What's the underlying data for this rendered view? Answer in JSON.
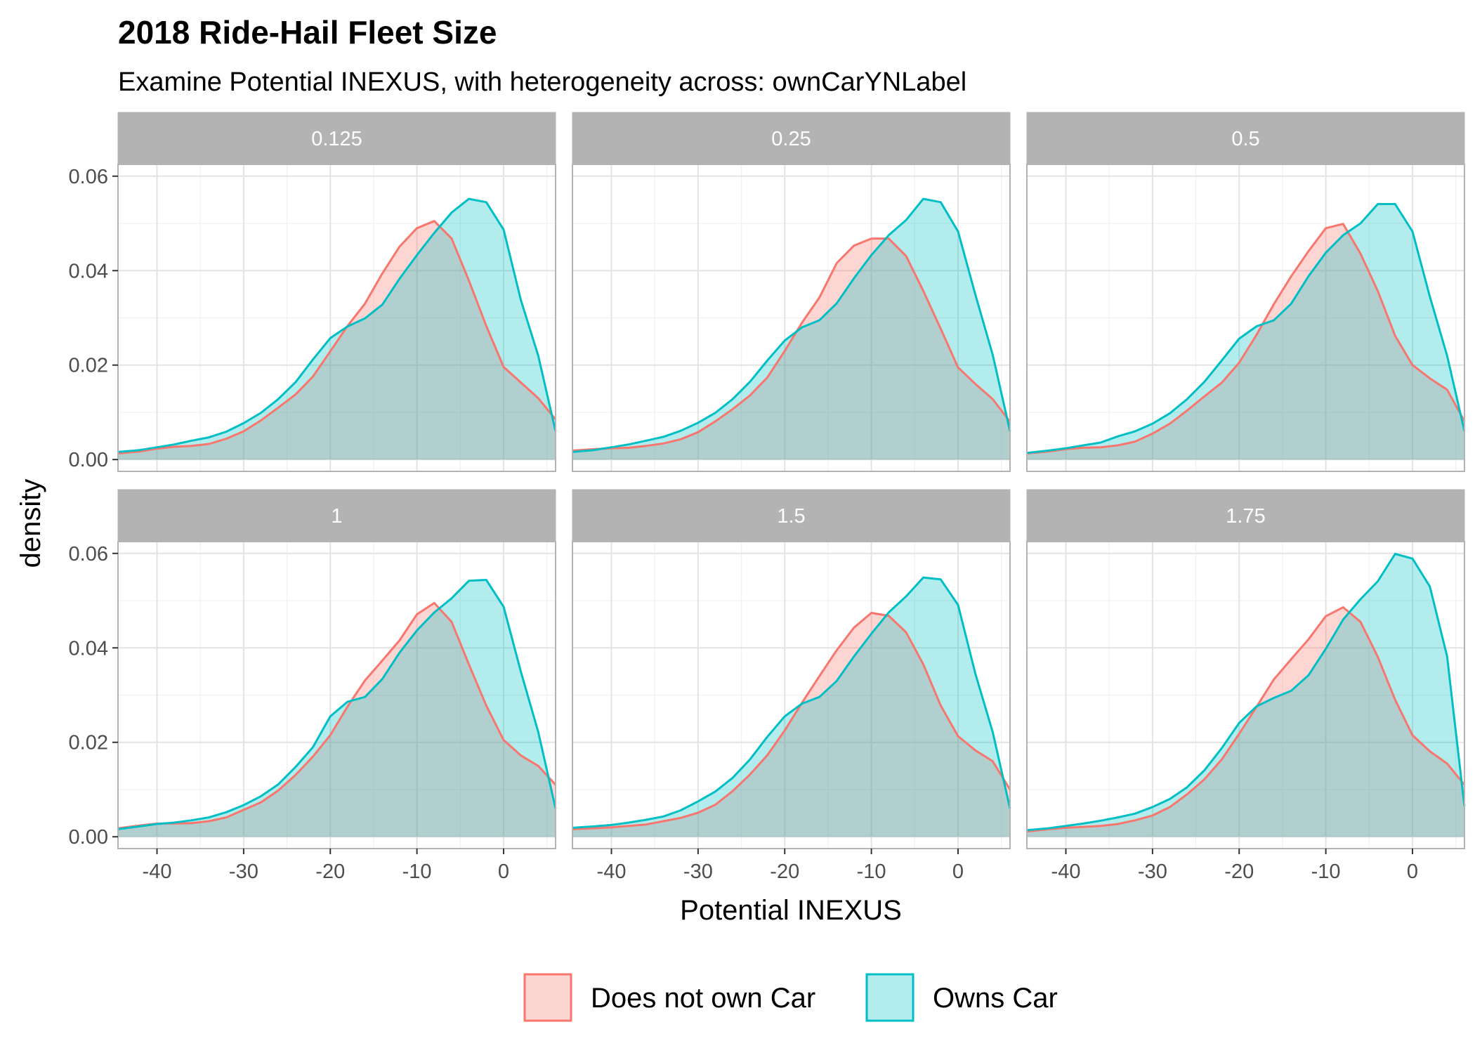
{
  "chart_data": {
    "type": "area",
    "title": "2018 Ride-Hail Fleet Size",
    "subtitle": "Examine Potential INEXUS, with heterogeneity across: ownCarYNLabel",
    "xlabel": "Potential INEXUS",
    "ylabel": "density",
    "xlim": [
      -44.5,
      6
    ],
    "ylim": [
      -0.0025,
      0.0625
    ],
    "x_ticks": [
      -40,
      -30,
      -20,
      -10,
      0
    ],
    "x_tick_labels": [
      "-40",
      "-30",
      "-20",
      "-10",
      "0"
    ],
    "y_ticks": [
      0,
      0.02,
      0.04,
      0.06
    ],
    "y_tick_labels": [
      "0.00",
      "0.02",
      "0.04",
      "0.06"
    ],
    "grid": true,
    "legend_position": "bottom",
    "legend": [
      {
        "name": "Does not own Car",
        "line_color": "#F8766D",
        "fill_color": "#FCD5D2"
      },
      {
        "name": "Owns Car",
        "line_color": "#00BFC4",
        "fill_color": "#B3ECED"
      }
    ],
    "facets": [
      {
        "label": "0.125",
        "series": [
          {
            "name": "Does not own Car",
            "x": [
              -44.5,
              -42,
              -40,
              -38,
              -36,
              -34,
              -32,
              -30,
              -28,
              -26,
              -24,
              -22,
              -20,
              -18,
              -16,
              -14,
              -12,
              -10,
              -8,
              -6,
              -4,
              -2,
              0,
              2,
              4,
              6
            ],
            "y": [
              0.0013,
              0.0017,
              0.0023,
              0.0027,
              0.0029,
              0.0033,
              0.0044,
              0.006,
              0.0083,
              0.011,
              0.0138,
              0.0176,
              0.0229,
              0.0283,
              0.033,
              0.0394,
              0.0451,
              0.049,
              0.0505,
              0.0468,
              0.0379,
              0.0283,
              0.0196,
              0.0163,
              0.013,
              0.0085
            ]
          },
          {
            "name": "Owns Car",
            "x": [
              -44.5,
              -42,
              -40,
              -38,
              -36,
              -34,
              -32,
              -30,
              -28,
              -26,
              -24,
              -22,
              -20,
              -18,
              -16,
              -14,
              -12,
              -10,
              -8,
              -6,
              -4,
              -2,
              0,
              2,
              4,
              6
            ],
            "y": [
              0.0016,
              0.002,
              0.0026,
              0.0032,
              0.004,
              0.0047,
              0.0059,
              0.0077,
              0.0099,
              0.0128,
              0.0164,
              0.0212,
              0.0257,
              0.0282,
              0.0299,
              0.0328,
              0.0383,
              0.0433,
              0.048,
              0.0523,
              0.0552,
              0.0545,
              0.0487,
              0.0337,
              0.022,
              0.006
            ]
          }
        ]
      },
      {
        "label": "0.25",
        "series": [
          {
            "name": "Does not own Car",
            "x": [
              -44.5,
              -42,
              -40,
              -38,
              -36,
              -34,
              -32,
              -30,
              -28,
              -26,
              -24,
              -22,
              -20,
              -18,
              -16,
              -14,
              -12,
              -10,
              -8,
              -6,
              -4,
              -2,
              0,
              2,
              4,
              6
            ],
            "y": [
              0.0019,
              0.0022,
              0.0024,
              0.0025,
              0.0029,
              0.0034,
              0.0043,
              0.0058,
              0.0081,
              0.0107,
              0.0136,
              0.0174,
              0.023,
              0.029,
              0.0343,
              0.0416,
              0.0453,
              0.0468,
              0.0468,
              0.0431,
              0.0357,
              0.0277,
              0.0195,
              0.016,
              0.0128,
              0.008
            ]
          },
          {
            "name": "Owns Car",
            "x": [
              -44.5,
              -42,
              -40,
              -38,
              -36,
              -34,
              -32,
              -30,
              -28,
              -26,
              -24,
              -22,
              -20,
              -18,
              -16,
              -14,
              -12,
              -10,
              -8,
              -6,
              -4,
              -2,
              0,
              2,
              4,
              6
            ],
            "y": [
              0.0016,
              0.002,
              0.0026,
              0.0032,
              0.004,
              0.0048,
              0.0061,
              0.0078,
              0.0099,
              0.0128,
              0.0165,
              0.021,
              0.0252,
              0.028,
              0.0295,
              0.0331,
              0.0384,
              0.0433,
              0.0475,
              0.0507,
              0.0552,
              0.0545,
              0.0483,
              0.0349,
              0.0222,
              0.006
            ]
          }
        ]
      },
      {
        "label": "0.5",
        "series": [
          {
            "name": "Does not own Car",
            "x": [
              -44.5,
              -42,
              -40,
              -38,
              -36,
              -34,
              -32,
              -30,
              -28,
              -26,
              -24,
              -22,
              -20,
              -18,
              -16,
              -14,
              -12,
              -10,
              -8,
              -6,
              -4,
              -2,
              0,
              2,
              4,
              6
            ],
            "y": [
              0.0013,
              0.0017,
              0.0022,
              0.0025,
              0.0026,
              0.003,
              0.0038,
              0.0055,
              0.0076,
              0.0104,
              0.0134,
              0.0163,
              0.0205,
              0.0264,
              0.0329,
              0.0388,
              0.0441,
              0.049,
              0.0499,
              0.0436,
              0.0357,
              0.0262,
              0.02,
              0.0172,
              0.0148,
              0.0081
            ]
          },
          {
            "name": "Owns Car",
            "x": [
              -44.5,
              -42,
              -40,
              -38,
              -36,
              -34,
              -32,
              -30,
              -28,
              -26,
              -24,
              -22,
              -20,
              -18,
              -16,
              -14,
              -12,
              -10,
              -8,
              -6,
              -4,
              -2,
              0,
              2,
              4,
              6
            ],
            "y": [
              0.0014,
              0.0019,
              0.0024,
              0.003,
              0.0036,
              0.0049,
              0.006,
              0.0076,
              0.0098,
              0.0128,
              0.0165,
              0.021,
              0.0256,
              0.0282,
              0.0295,
              0.033,
              0.0388,
              0.0438,
              0.0475,
              0.05,
              0.0541,
              0.0541,
              0.0483,
              0.0345,
              0.022,
              0.006
            ]
          }
        ]
      },
      {
        "label": "1",
        "series": [
          {
            "name": "Does not own Car",
            "x": [
              -44.5,
              -42,
              -40,
              -38,
              -36,
              -34,
              -32,
              -30,
              -28,
              -26,
              -24,
              -22,
              -20,
              -18,
              -16,
              -14,
              -12,
              -10,
              -8,
              -6,
              -4,
              -2,
              0,
              2,
              4,
              6
            ],
            "y": [
              0.0018,
              0.0024,
              0.0028,
              0.0028,
              0.0029,
              0.0033,
              0.0041,
              0.0057,
              0.0073,
              0.0098,
              0.0131,
              0.017,
              0.0215,
              0.0276,
              0.0331,
              0.0373,
              0.0416,
              0.0471,
              0.0495,
              0.0455,
              0.0365,
              0.0278,
              0.0205,
              0.0172,
              0.015,
              0.011
            ]
          },
          {
            "name": "Owns Car",
            "x": [
              -44.5,
              -42,
              -40,
              -38,
              -36,
              -34,
              -32,
              -30,
              -28,
              -26,
              -24,
              -22,
              -20,
              -18,
              -16,
              -14,
              -12,
              -10,
              -8,
              -6,
              -4,
              -2,
              0,
              2,
              4,
              6
            ],
            "y": [
              0.0016,
              0.0022,
              0.0027,
              0.003,
              0.0035,
              0.0041,
              0.0052,
              0.0067,
              0.0086,
              0.0111,
              0.0148,
              0.019,
              0.0255,
              0.0286,
              0.0296,
              0.0334,
              0.039,
              0.0437,
              0.0475,
              0.0505,
              0.0542,
              0.0544,
              0.0487,
              0.0349,
              0.0222,
              0.006
            ]
          }
        ]
      },
      {
        "label": "1.5",
        "series": [
          {
            "name": "Does not own Car",
            "x": [
              -44.5,
              -42,
              -40,
              -38,
              -36,
              -34,
              -32,
              -30,
              -28,
              -26,
              -24,
              -22,
              -20,
              -18,
              -16,
              -14,
              -12,
              -10,
              -8,
              -6,
              -4,
              -2,
              0,
              2,
              4,
              6
            ],
            "y": [
              0.0016,
              0.0018,
              0.002,
              0.0023,
              0.0026,
              0.0033,
              0.004,
              0.0051,
              0.0068,
              0.0097,
              0.0132,
              0.0173,
              0.0225,
              0.0284,
              0.034,
              0.0395,
              0.0443,
              0.0474,
              0.0468,
              0.0433,
              0.0365,
              0.0278,
              0.0213,
              0.0183,
              0.016,
              0.01
            ]
          },
          {
            "name": "Owns Car",
            "x": [
              -44.5,
              -42,
              -40,
              -38,
              -36,
              -34,
              -32,
              -30,
              -28,
              -26,
              -24,
              -22,
              -20,
              -18,
              -16,
              -14,
              -12,
              -10,
              -8,
              -6,
              -4,
              -2,
              0,
              2,
              4,
              6
            ],
            "y": [
              0.0019,
              0.0022,
              0.0025,
              0.003,
              0.0036,
              0.0043,
              0.0056,
              0.0075,
              0.0096,
              0.0125,
              0.0164,
              0.0212,
              0.0255,
              0.0282,
              0.0296,
              0.033,
              0.0382,
              0.043,
              0.0475,
              0.0509,
              0.0549,
              0.0545,
              0.0491,
              0.0345,
              0.0222,
              0.006
            ]
          }
        ]
      },
      {
        "label": "1.75",
        "series": [
          {
            "name": "Does not own Car",
            "x": [
              -44.5,
              -42,
              -40,
              -38,
              -36,
              -34,
              -32,
              -30,
              -28,
              -26,
              -24,
              -22,
              -20,
              -18,
              -16,
              -14,
              -12,
              -10,
              -8,
              -6,
              -4,
              -2,
              0,
              2,
              4,
              6
            ],
            "y": [
              0.0011,
              0.0016,
              0.0019,
              0.0021,
              0.0023,
              0.0027,
              0.0035,
              0.0045,
              0.0063,
              0.009,
              0.0122,
              0.0164,
              0.0218,
              0.0275,
              0.0333,
              0.0376,
              0.0418,
              0.0467,
              0.0486,
              0.0455,
              0.0381,
              0.029,
              0.0215,
              0.0181,
              0.0155,
              0.011
            ]
          },
          {
            "name": "Owns Car",
            "x": [
              -44.5,
              -42,
              -40,
              -38,
              -36,
              -34,
              -32,
              -30,
              -28,
              -26,
              -24,
              -22,
              -20,
              -18,
              -16,
              -14,
              -12,
              -10,
              -8,
              -6,
              -4,
              -2,
              0,
              2,
              4,
              6
            ],
            "y": [
              0.0014,
              0.0018,
              0.0023,
              0.0028,
              0.0034,
              0.0041,
              0.0049,
              0.0063,
              0.008,
              0.0105,
              0.0141,
              0.0188,
              0.0241,
              0.0276,
              0.0294,
              0.0309,
              0.0342,
              0.0398,
              0.046,
              0.0503,
              0.0541,
              0.0599,
              0.0589,
              0.053,
              0.0382,
              0.0064
            ]
          }
        ]
      }
    ]
  }
}
